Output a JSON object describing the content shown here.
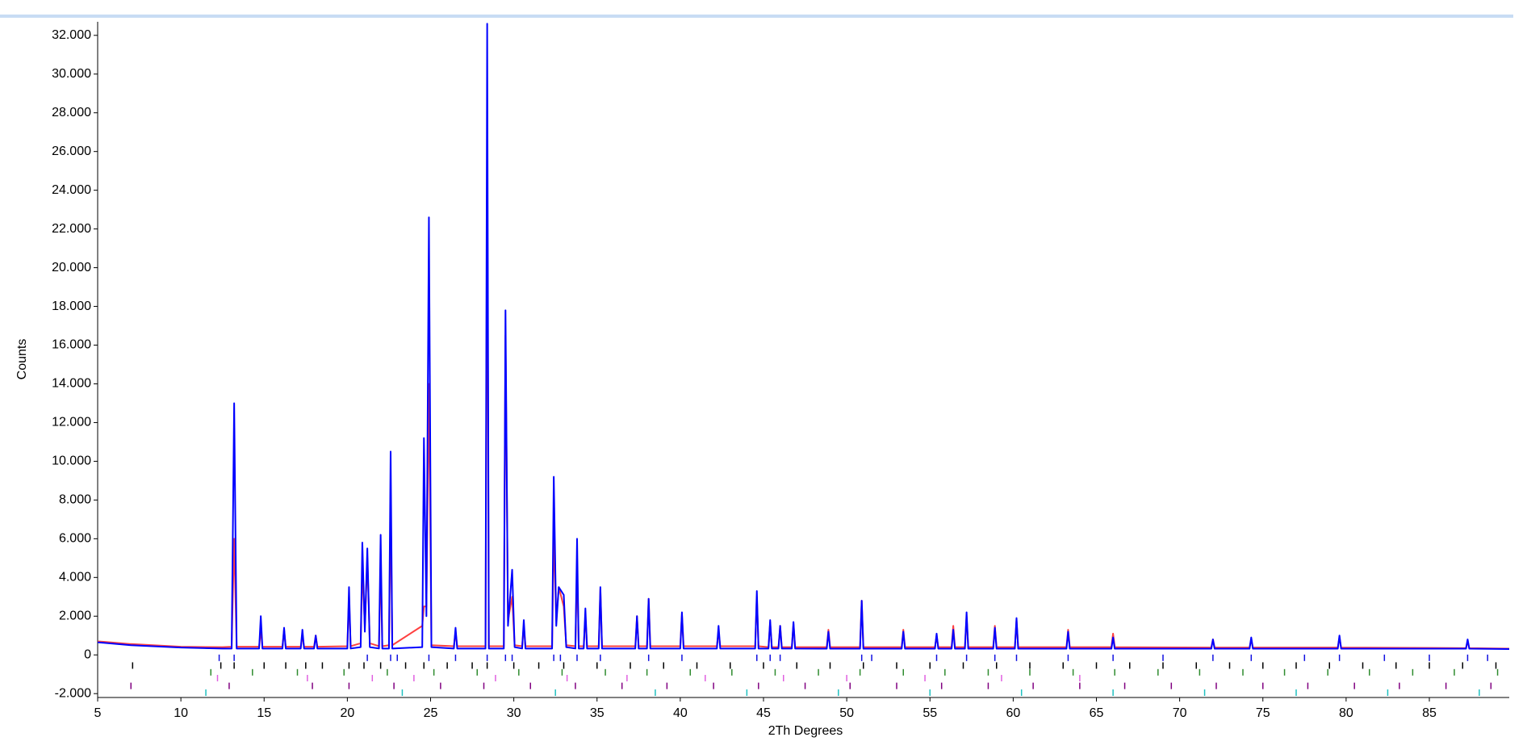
{
  "chart_data": {
    "type": "line",
    "x_label": "2Th Degrees",
    "y_label": "Counts",
    "xlim": [
      5,
      89.8
    ],
    "ylim": [
      -2200,
      32700
    ],
    "xticks": [
      5,
      10,
      15,
      20,
      25,
      30,
      35,
      40,
      45,
      50,
      55,
      60,
      65,
      70,
      75,
      80,
      85
    ],
    "yticks": [
      {
        "value": -2000,
        "label": "-2.000"
      },
      0,
      {
        "value": 2000,
        "label": "2.000"
      },
      {
        "value": 4000,
        "label": "4.000"
      },
      {
        "value": 6000,
        "label": "6.000"
      },
      {
        "value": 8000,
        "label": "8.000"
      },
      {
        "value": 10000,
        "label": "10.000"
      },
      {
        "value": 12000,
        "label": "12.000"
      },
      {
        "value": 14000,
        "label": "14.000"
      },
      {
        "value": 16000,
        "label": "16.000"
      },
      {
        "value": 18000,
        "label": "18.000"
      },
      {
        "value": 20000,
        "label": "20.000"
      },
      {
        "value": 22000,
        "label": "22.000"
      },
      {
        "value": 24000,
        "label": "24.000"
      },
      {
        "value": 26000,
        "label": "26.000"
      },
      {
        "value": 28000,
        "label": "28.000"
      },
      {
        "value": 30000,
        "label": "30.000"
      },
      {
        "value": 32000,
        "label": "32.000"
      }
    ],
    "x": [
      5,
      7,
      10,
      12.5,
      13.05,
      13.2,
      13.35,
      14.7,
      14.8,
      14.9,
      16.1,
      16.2,
      16.3,
      17.2,
      17.3,
      17.4,
      18.0,
      18.1,
      18.2,
      20.0,
      20.1,
      20.2,
      20.8,
      20.9,
      21.05,
      21.2,
      21.35,
      21.9,
      22.0,
      22.1,
      22.5,
      22.6,
      22.7,
      24.5,
      24.6,
      24.75,
      24.9,
      25.05,
      26.4,
      26.5,
      26.6,
      28.3,
      28.4,
      28.5,
      29.4,
      29.5,
      29.65,
      29.9,
      30.05,
      30.5,
      30.6,
      30.7,
      32.3,
      32.4,
      32.55,
      32.7,
      33.0,
      33.15,
      33.7,
      33.8,
      33.9,
      34.2,
      34.3,
      34.4,
      35.1,
      35.2,
      35.3,
      37.3,
      37.4,
      37.5,
      38.0,
      38.1,
      38.2,
      40.0,
      40.1,
      40.2,
      42.2,
      42.3,
      42.4,
      44.5,
      44.6,
      44.7,
      45.3,
      45.4,
      45.5,
      45.9,
      46.0,
      46.1,
      46.7,
      46.8,
      46.9,
      48.8,
      48.9,
      49.0,
      50.8,
      50.9,
      51.0,
      53.3,
      53.4,
      53.5,
      55.3,
      55.4,
      55.5,
      56.3,
      56.4,
      56.5,
      57.1,
      57.2,
      57.3,
      58.8,
      58.9,
      59.0,
      60.1,
      60.2,
      60.3,
      63.2,
      63.3,
      63.4,
      65.9,
      66.0,
      66.1,
      71.9,
      72.0,
      72.1,
      74.2,
      74.3,
      74.4,
      79.5,
      79.6,
      79.7,
      87.2,
      87.3,
      87.4,
      89.8
    ],
    "series": [
      {
        "color": "#ff4040",
        "values": [
          700,
          560,
          420,
          400,
          420,
          6000,
          420,
          420,
          1300,
          420,
          420,
          1300,
          420,
          420,
          1000,
          420,
          420,
          1000,
          420,
          450,
          3000,
          450,
          600,
          4500,
          1500,
          5000,
          600,
          450,
          4800,
          450,
          500,
          8000,
          500,
          1500,
          2500,
          2500,
          14000,
          500,
          450,
          1200,
          450,
          450,
          26000,
          450,
          450,
          16500,
          1800,
          3000,
          500,
          450,
          1500,
          450,
          450,
          6300,
          1800,
          3500,
          2500,
          500,
          450,
          4800,
          450,
          450,
          2000,
          450,
          450,
          3400,
          450,
          450,
          2000,
          450,
          450,
          2900,
          450,
          450,
          2100,
          450,
          450,
          1200,
          450,
          450,
          3000,
          450,
          400,
          1700,
          400,
          400,
          1500,
          400,
          400,
          1600,
          400,
          400,
          1300,
          400,
          400,
          2800,
          400,
          400,
          1300,
          400,
          400,
          1000,
          400,
          400,
          1500,
          400,
          400,
          2000,
          400,
          400,
          1500,
          400,
          400,
          1800,
          400,
          400,
          1300,
          400,
          400,
          1100,
          400,
          380,
          800,
          380,
          380,
          800,
          380,
          380,
          900,
          380,
          350,
          700,
          350,
          320
        ]
      },
      {
        "color": "#0000ff",
        "values": [
          650,
          500,
          380,
          330,
          330,
          13000,
          330,
          330,
          2000,
          330,
          330,
          1400,
          330,
          330,
          1300,
          330,
          330,
          1000,
          330,
          330,
          3500,
          330,
          400,
          5800,
          1200,
          5500,
          400,
          330,
          6200,
          330,
          330,
          10500,
          330,
          400,
          11200,
          2000,
          22600,
          400,
          330,
          1400,
          330,
          330,
          32600,
          330,
          330,
          17800,
          1500,
          4400,
          400,
          330,
          1800,
          330,
          330,
          9200,
          1500,
          3500,
          3100,
          400,
          330,
          6000,
          330,
          330,
          2400,
          330,
          330,
          3500,
          330,
          330,
          2000,
          330,
          330,
          2900,
          330,
          330,
          2200,
          330,
          330,
          1500,
          330,
          330,
          3300,
          330,
          330,
          1800,
          330,
          330,
          1500,
          330,
          330,
          1700,
          330,
          320,
          1200,
          320,
          320,
          2800,
          320,
          320,
          1200,
          320,
          320,
          1100,
          320,
          320,
          1300,
          320,
          320,
          2200,
          320,
          320,
          1400,
          320,
          320,
          1900,
          320,
          320,
          1200,
          320,
          320,
          900,
          320,
          320,
          800,
          320,
          320,
          900,
          320,
          320,
          1000,
          320,
          320,
          800,
          320,
          300
        ]
      }
    ],
    "reflections": [
      {
        "color": "#1010e0",
        "y": -150,
        "x": [
          12.3,
          13.2,
          21.2,
          22.6,
          23.0,
          24.9,
          26.5,
          28.4,
          29.5,
          29.9,
          32.4,
          32.8,
          33.8,
          35.2,
          38.1,
          40.1,
          44.6,
          45.4,
          46.0,
          50.9,
          51.5,
          55.4,
          57.2,
          58.9,
          60.2,
          63.3,
          66.0,
          69.0,
          72.0,
          74.3,
          77.5,
          79.6,
          82.3,
          85.0,
          87.3,
          88.5
        ]
      },
      {
        "color": "#000000",
        "y": -550,
        "x": [
          7.1,
          12.4,
          13.2,
          15.0,
          16.3,
          17.5,
          18.5,
          20.1,
          21.0,
          22.0,
          23.5,
          24.6,
          26.0,
          27.5,
          28.4,
          30.0,
          31.5,
          33.0,
          35.0,
          37.0,
          39.0,
          41.0,
          43.0,
          45.0,
          47.0,
          49.0,
          51.0,
          53.0,
          55.0,
          57.0,
          59.0,
          61.0,
          63.0,
          65.0,
          67.0,
          69.0,
          71.0,
          73.0,
          75.0,
          77.0,
          79.0,
          81.0,
          83.0,
          85.0,
          87.0,
          89.0
        ]
      },
      {
        "color": "#2e8b2e",
        "y": -900,
        "x": [
          11.8,
          14.3,
          17.0,
          19.8,
          22.4,
          25.2,
          27.8,
          30.3,
          32.9,
          35.5,
          38.0,
          40.6,
          43.1,
          45.7,
          48.3,
          50.8,
          53.4,
          55.9,
          58.5,
          61.0,
          63.6,
          66.1,
          68.7,
          71.2,
          73.8,
          76.3,
          78.9,
          81.4,
          84.0,
          86.5,
          89.1
        ]
      },
      {
        "color": "#e060e0",
        "y": -1200,
        "x": [
          12.2,
          17.6,
          21.5,
          24.0,
          28.9,
          33.2,
          36.8,
          41.5,
          46.2,
          50.0,
          54.7,
          59.3,
          64.0
        ]
      },
      {
        "color": "#800080",
        "y": -1600,
        "x": [
          7.0,
          12.9,
          17.9,
          20.1,
          22.8,
          25.6,
          28.2,
          31.0,
          33.7,
          36.5,
          39.2,
          42.0,
          44.7,
          47.5,
          50.2,
          53.0,
          55.7,
          58.5,
          61.2,
          64.0,
          66.7,
          69.5,
          72.2,
          75.0,
          77.7,
          80.5,
          83.2,
          86.0,
          88.7
        ]
      },
      {
        "color": "#20c0c0",
        "y": -1950,
        "x": [
          11.5,
          23.3,
          32.5,
          38.5,
          44.0,
          49.5,
          55.0,
          60.5,
          66.0,
          71.5,
          77.0,
          82.5,
          88.0
        ]
      }
    ]
  }
}
